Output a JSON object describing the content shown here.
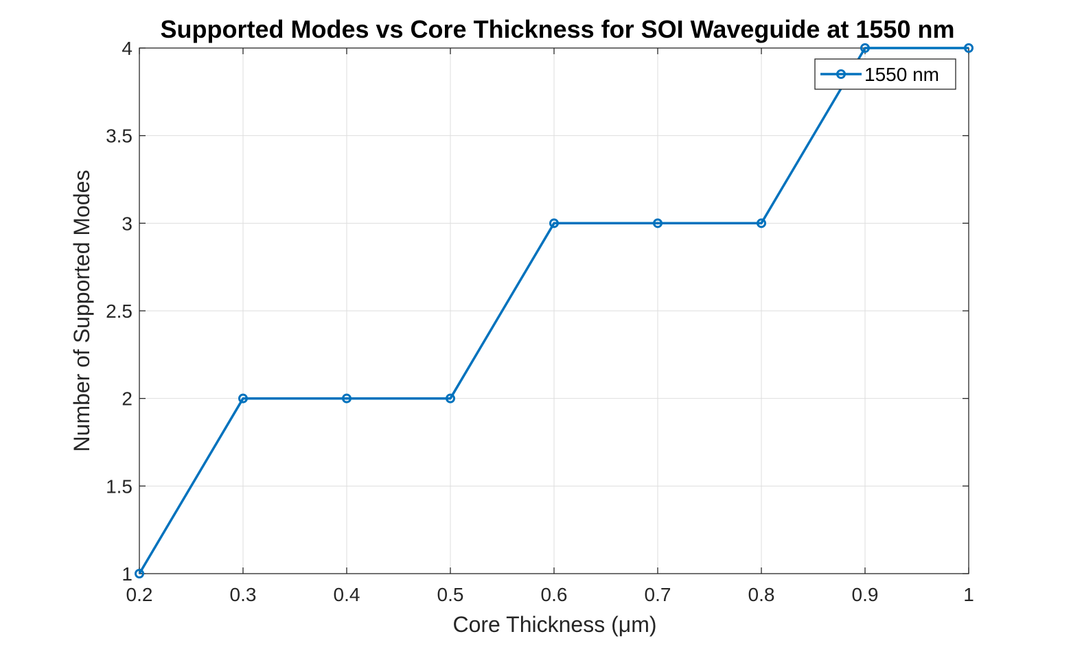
{
  "chart_data": {
    "type": "line",
    "title": "Supported Modes vs Core Thickness for SOI Waveguide at 1550 nm",
    "xlabel": "Core Thickness (μm)",
    "ylabel": "Number of Supported Modes",
    "xlim": [
      0.2,
      1.0
    ],
    "ylim": [
      1,
      4
    ],
    "xticks": [
      "0.2",
      "0.3",
      "0.4",
      "0.5",
      "0.6",
      "0.7",
      "0.8",
      "0.9",
      "1"
    ],
    "yticks": [
      "1",
      "1.5",
      "2",
      "2.5",
      "3",
      "3.5",
      "4"
    ],
    "grid": true,
    "legend_position": "top-right",
    "series": [
      {
        "name": "1550 nm",
        "color": "#0072BD",
        "marker": "circle",
        "x": [
          0.2,
          0.3,
          0.4,
          0.5,
          0.6,
          0.7,
          0.8,
          0.9,
          1.0
        ],
        "y": [
          1,
          2,
          2,
          2,
          3,
          3,
          3,
          4,
          4
        ]
      }
    ]
  }
}
